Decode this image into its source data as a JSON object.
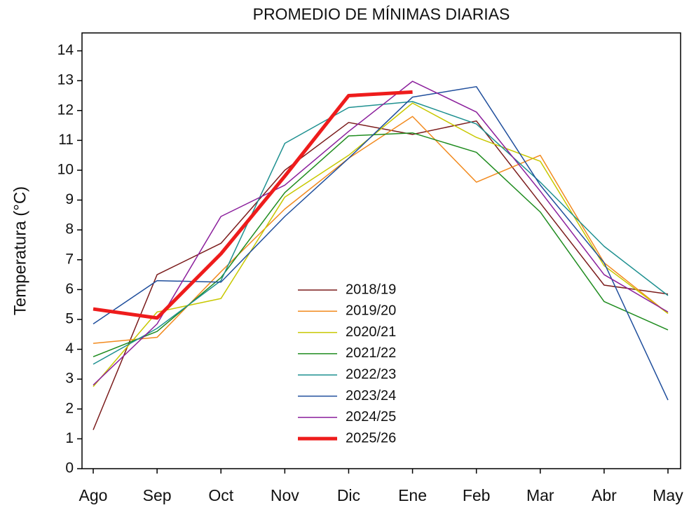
{
  "chart_data": {
    "type": "line",
    "title": "PROMEDIO DE MÍNIMAS DIARIAS",
    "y_label": "Temperatura (°C)",
    "categories": [
      "Ago",
      "Sep",
      "Oct",
      "Nov",
      "Dic",
      "Ene",
      "Feb",
      "Mar",
      "Abr",
      "May"
    ],
    "ylim": [
      0,
      14.6
    ],
    "yticks": [
      0,
      1,
      2,
      3,
      4,
      5,
      6,
      7,
      8,
      9,
      10,
      11,
      12,
      13,
      14
    ],
    "series": [
      {
        "name": "2018/19",
        "color": "#7b1c1c",
        "values": [
          1.3,
          6.5,
          7.55,
          10.0,
          11.6,
          11.2,
          11.65,
          8.9,
          6.15,
          5.85
        ]
      },
      {
        "name": "2019/20",
        "color": "#f28a1e",
        "values": [
          4.2,
          4.4,
          6.6,
          8.7,
          10.4,
          11.8,
          9.6,
          10.5,
          6.9,
          5.2
        ]
      },
      {
        "name": "2020/21",
        "color": "#c8c800",
        "values": [
          2.75,
          5.25,
          5.7,
          9.1,
          10.5,
          12.25,
          11.1,
          10.3,
          6.8,
          5.2
        ]
      },
      {
        "name": "2021/22",
        "color": "#1f8c1f",
        "values": [
          3.75,
          4.6,
          6.4,
          9.25,
          11.15,
          11.25,
          10.6,
          8.6,
          5.6,
          4.65
        ]
      },
      {
        "name": "2022/23",
        "color": "#1e9090",
        "values": [
          3.5,
          4.7,
          6.3,
          10.9,
          12.1,
          12.3,
          11.55,
          9.6,
          7.45,
          5.8
        ]
      },
      {
        "name": "2023/24",
        "color": "#1f4e9c",
        "values": [
          4.85,
          6.3,
          6.25,
          8.45,
          10.4,
          12.45,
          12.8,
          9.5,
          6.9,
          2.3
        ]
      },
      {
        "name": "2024/25",
        "color": "#8b1f9c",
        "values": [
          2.8,
          4.85,
          8.45,
          9.5,
          11.3,
          12.98,
          11.95,
          9.3,
          6.5,
          5.25
        ]
      },
      {
        "name": "2025/26",
        "color": "#ee1c1c",
        "width": 5,
        "values": [
          5.35,
          5.05,
          7.2,
          9.8,
          12.5,
          12.62,
          null,
          null,
          null,
          null
        ]
      }
    ]
  }
}
